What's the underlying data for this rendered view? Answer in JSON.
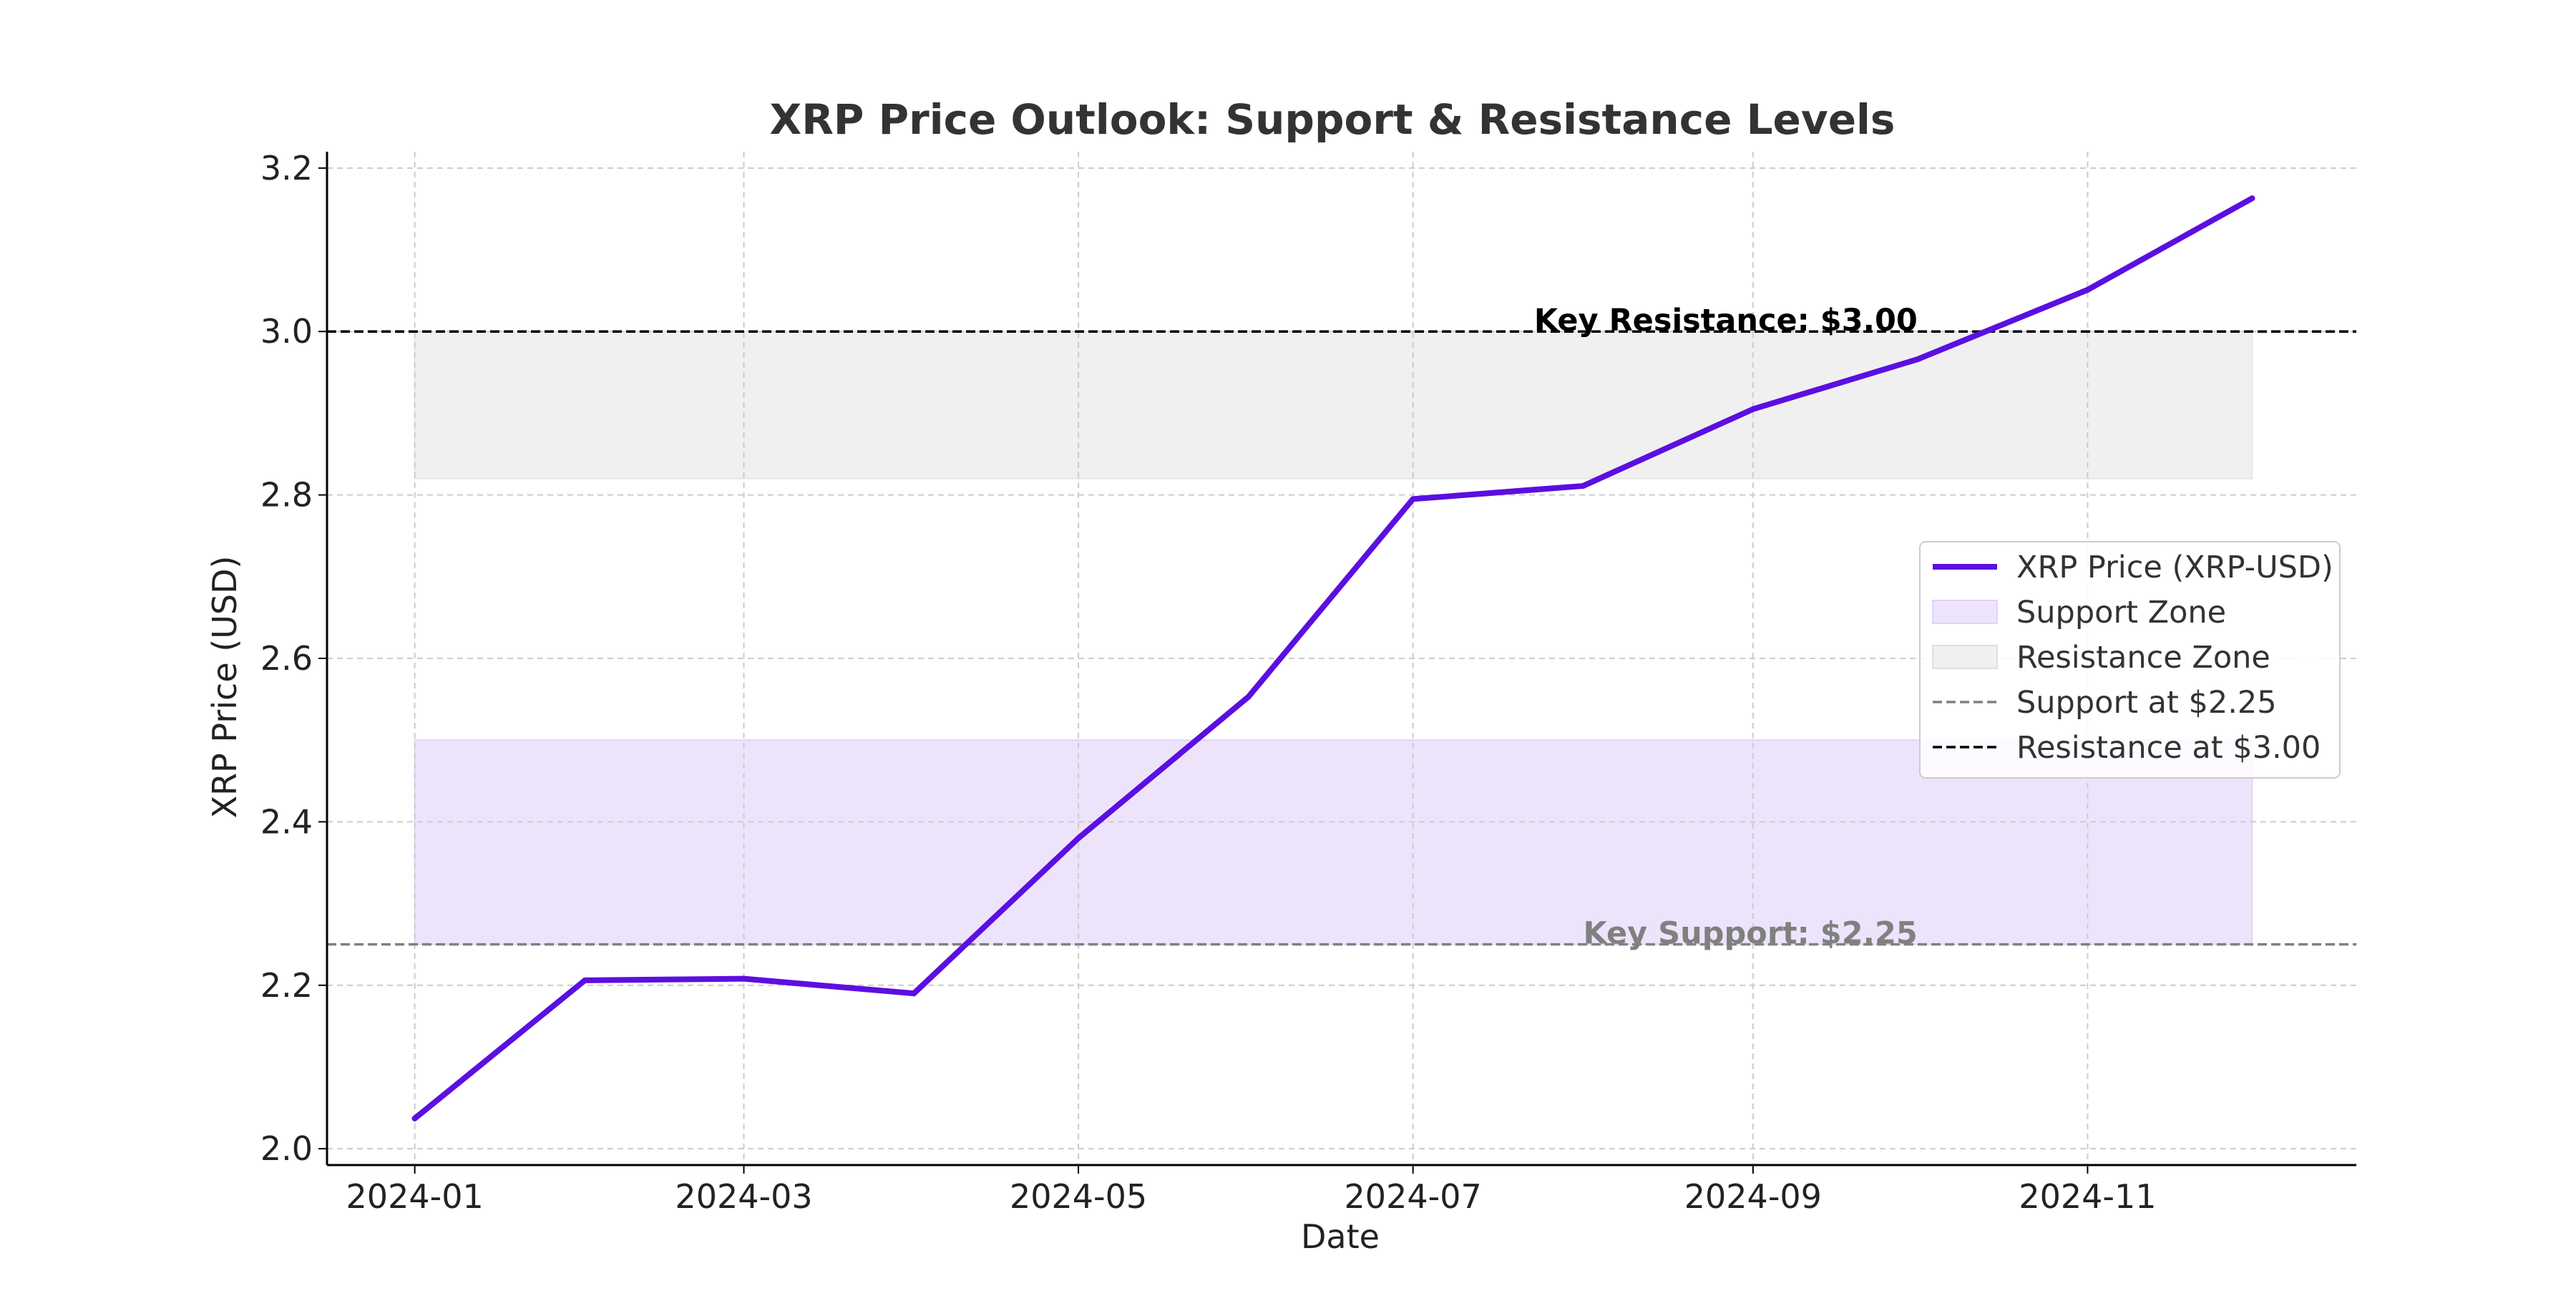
{
  "chart_data": {
    "type": "line",
    "title": "XRP Price Outlook: Support & Resistance Levels",
    "xlabel": "Date",
    "ylabel": "XRP Price (USD)",
    "x_tick_labels": [
      "2024-01",
      "2024-03",
      "2024-05",
      "2024-07",
      "2024-09",
      "2024-11"
    ],
    "y_tick_labels": [
      "2.0",
      "2.2",
      "2.4",
      "2.6",
      "2.8",
      "3.0",
      "3.2"
    ],
    "ylim": [
      1.98,
      3.22
    ],
    "xlim": [
      "2023-12-16",
      "2024-12-20"
    ],
    "grid": true,
    "legend_position": "center-right",
    "series": [
      {
        "name": "XRP Price (XRP-USD)",
        "color": "#5B0FE0",
        "x": [
          "2024-01-01",
          "2024-02-01",
          "2024-03-01",
          "2024-04-01",
          "2024-05-01",
          "2024-06-01",
          "2024-07-01",
          "2024-08-01",
          "2024-09-01",
          "2024-10-01",
          "2024-11-01",
          "2024-12-01"
        ],
        "y": [
          2.037,
          2.206,
          2.208,
          2.19,
          2.38,
          2.553,
          2.795,
          2.811,
          2.905,
          2.966,
          3.051,
          3.163
        ]
      }
    ],
    "zones": [
      {
        "name": "Support Zone",
        "y_range": [
          2.25,
          2.5
        ],
        "x_range": [
          "2024-01-01",
          "2024-12-01"
        ],
        "color": "#EDE4FC"
      },
      {
        "name": "Resistance Zone",
        "y_range": [
          2.82,
          3.0
        ],
        "x_range": [
          "2024-01-01",
          "2024-12-01"
        ],
        "color": "#F0F0F0"
      }
    ],
    "reference_lines": [
      {
        "name": "Support at $2.25",
        "y": 2.25,
        "color": "#808080",
        "style": "dashed"
      },
      {
        "name": "Resistance at $3.00",
        "y": 3.0,
        "color": "#000000",
        "style": "dashed"
      }
    ],
    "annotations": [
      {
        "text": "Key Resistance: $3.00",
        "x": "2024-10-01",
        "y": 3.0,
        "color": "#000000"
      },
      {
        "text": "Key Support: $2.25",
        "x": "2024-10-01",
        "y": 2.25,
        "color": "#808080"
      }
    ],
    "legend": [
      {
        "label": "XRP Price (XRP-USD)",
        "kind": "line",
        "color": "#5B0FE0"
      },
      {
        "label": "Support Zone",
        "kind": "patch",
        "color": "#EDE4FC"
      },
      {
        "label": "Resistance Zone",
        "kind": "patch",
        "color": "#F0F0F0"
      },
      {
        "label": "Support at $2.25",
        "kind": "dashed",
        "color": "#808080"
      },
      {
        "label": "Resistance at $3.00",
        "kind": "dashed",
        "color": "#000000"
      }
    ]
  }
}
